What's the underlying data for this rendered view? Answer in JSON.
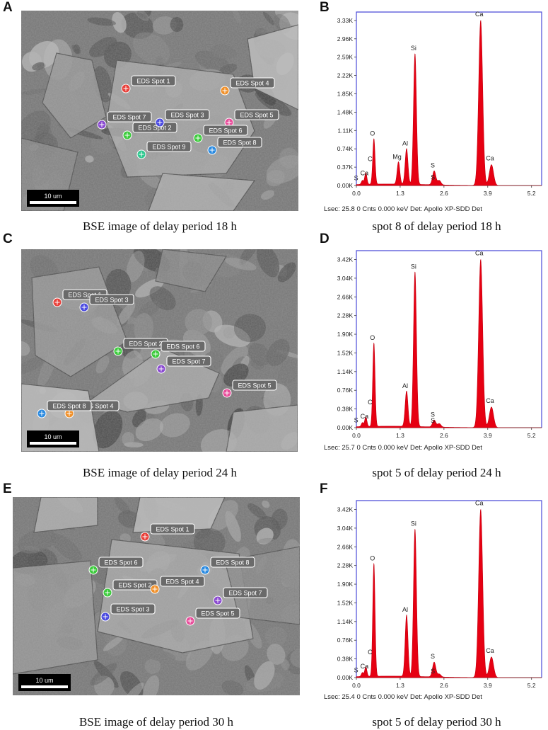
{
  "panels": [
    {
      "letter": "A",
      "kind": "sem",
      "caption": "BSE image of delay period 18 h",
      "scale_label": "10 um",
      "spots": [
        "EDS Spot 1",
        "EDS Spot 2",
        "EDS Spot 3",
        "EDS Spot 4",
        "EDS Spot 5",
        "EDS Spot 6",
        "EDS Spot 7",
        "EDS Spot 8",
        "EDS Spot 9"
      ],
      "spot_colors": [
        "#e8403a",
        "#3ccb3c",
        "#4a4ae0",
        "#f0902a",
        "#e84c9a",
        "#3ccb3c",
        "#8a4ad0",
        "#2a8ae0",
        "#30c890"
      ]
    },
    {
      "letter": "C",
      "kind": "sem",
      "caption": "BSE image of delay period 24 h",
      "scale_label": "10 um",
      "spots": [
        "EDS Spot 1",
        "EDS Spot 2",
        "EDS Spot 3",
        "EDS Spot 4",
        "EDS Spot 5",
        "EDS Spot 6",
        "EDS Spot 7",
        "EDS Spot 8"
      ],
      "spot_colors": [
        "#e8403a",
        "#3ccb3c",
        "#4a4ae0",
        "#f0902a",
        "#e84c9a",
        "#3ccb3c",
        "#8a4ad0",
        "#2a8ae0"
      ]
    },
    {
      "letter": "E",
      "kind": "sem",
      "caption": "BSE image of delay period 30 h",
      "scale_label": "10 um",
      "spots": [
        "EDS Spot 1",
        "EDS Spot 2",
        "EDS Spot 3",
        "EDS Spot 4",
        "EDS Spot 5",
        "EDS Spot 6",
        "EDS Spot 7",
        "EDS Spot 8"
      ],
      "spot_colors": [
        "#e8403a",
        "#3ccb3c",
        "#4a4ae0",
        "#f0902a",
        "#e84c9a",
        "#3ccb3c",
        "#8a4ad0",
        "#2a8ae0"
      ]
    }
  ],
  "spectra": [
    {
      "letter": "B",
      "caption": "spot 8 of delay period 18 h",
      "footer": "Lsec: 25.8 0 Cnts  0.000 keV Det: Apollo XP-SDD Det",
      "y_ticks": [
        "0.00K",
        "0.37K",
        "0.74K",
        "1.11K",
        "1.48K",
        "1.85K",
        "2.22K",
        "2.59K",
        "2.96K",
        "3.33K"
      ],
      "y_max_k": 3.5,
      "x_ticks": [
        "0.0",
        "1.3",
        "2.6",
        "3.9",
        "5.2"
      ],
      "peaks": [
        {
          "label": "S",
          "kev": 0.18,
          "k": 0.08
        },
        {
          "label": "Ca",
          "kev": 0.28,
          "k": 0.12
        },
        {
          "label": "C",
          "kev": 0.28,
          "k": 0.12
        },
        {
          "label": "O",
          "kev": 0.52,
          "k": 0.92
        },
        {
          "label": "Mg",
          "kev": 1.25,
          "k": 0.45
        },
        {
          "label": "Al",
          "kev": 1.49,
          "k": 0.72
        },
        {
          "label": "Si",
          "kev": 1.74,
          "k": 2.64
        },
        {
          "label": "S",
          "kev": 2.31,
          "k": 0.28
        },
        {
          "label": "S",
          "kev": 2.46,
          "k": 0.09
        },
        {
          "label": "Ca",
          "kev": 3.69,
          "k": 3.33
        },
        {
          "label": "Ca",
          "kev": 4.01,
          "k": 0.42
        }
      ]
    },
    {
      "letter": "D",
      "caption": "spot 5 of delay period 24 h",
      "footer": "Lsec: 25.7 0 Cnts  0.000 keV Det: Apollo XP-SDD Det",
      "y_ticks": [
        "0.00K",
        "0.38K",
        "0.76K",
        "1.14K",
        "1.52K",
        "1.90K",
        "2.28K",
        "2.66K",
        "3.04K",
        "3.42K"
      ],
      "y_max_k": 3.6,
      "x_ticks": [
        "0.0",
        "1.3",
        "2.6",
        "3.9",
        "5.2"
      ],
      "peaks": [
        {
          "label": "S",
          "kev": 0.18,
          "k": 0.08
        },
        {
          "label": "Ca",
          "kev": 0.28,
          "k": 0.1
        },
        {
          "label": "C",
          "kev": 0.28,
          "k": 0.1
        },
        {
          "label": "O",
          "kev": 0.52,
          "k": 1.7
        },
        {
          "label": "Al",
          "kev": 1.49,
          "k": 0.72
        },
        {
          "label": "Si",
          "kev": 1.74,
          "k": 3.15
        },
        {
          "label": "S",
          "kev": 2.31,
          "k": 0.14
        },
        {
          "label": "S",
          "kev": 2.46,
          "k": 0.07
        },
        {
          "label": "Ca",
          "kev": 3.69,
          "k": 3.42
        },
        {
          "label": "Ca",
          "kev": 4.01,
          "k": 0.42
        }
      ]
    },
    {
      "letter": "F",
      "caption": "spot 5 of delay period 30 h",
      "footer": "Lsec: 25.4 0 Cnts  0.000 keV Det: Apollo XP-SDD Det",
      "y_ticks": [
        "0.00K",
        "0.38K",
        "0.76K",
        "1.14K",
        "1.52K",
        "1.90K",
        "2.28K",
        "2.66K",
        "3.04K",
        "3.42K"
      ],
      "y_max_k": 3.6,
      "x_ticks": [
        "0.0",
        "1.3",
        "2.6",
        "3.9",
        "5.2"
      ],
      "peaks": [
        {
          "label": "S",
          "kev": 0.18,
          "k": 0.08
        },
        {
          "label": "Ca",
          "kev": 0.28,
          "k": 0.1
        },
        {
          "label": "C",
          "kev": 0.28,
          "k": 0.1
        },
        {
          "label": "O",
          "kev": 0.52,
          "k": 2.3
        },
        {
          "label": "Al",
          "kev": 1.49,
          "k": 1.25
        },
        {
          "label": "Si",
          "kev": 1.74,
          "k": 3.0
        },
        {
          "label": "S",
          "kev": 2.31,
          "k": 0.3
        },
        {
          "label": "S",
          "kev": 2.46,
          "k": 0.06
        },
        {
          "label": "Ca",
          "kev": 3.69,
          "k": 3.42
        },
        {
          "label": "Ca",
          "kev": 4.01,
          "k": 0.42
        }
      ]
    }
  ]
}
